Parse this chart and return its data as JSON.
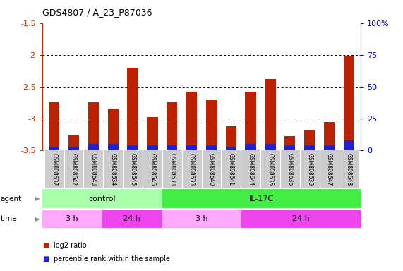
{
  "title": "GDS4807 / A_23_P87036",
  "samples": [
    "GSM808637",
    "GSM808642",
    "GSM808643",
    "GSM808634",
    "GSM808645",
    "GSM808646",
    "GSM808633",
    "GSM808638",
    "GSM808640",
    "GSM808641",
    "GSM808644",
    "GSM808635",
    "GSM808636",
    "GSM808639",
    "GSM808647",
    "GSM808648"
  ],
  "log2_ratio": [
    -2.75,
    -3.25,
    -2.75,
    -2.85,
    -2.2,
    -2.98,
    -2.75,
    -2.58,
    -2.7,
    -3.12,
    -2.58,
    -2.38,
    -3.28,
    -3.18,
    -3.05,
    -2.02
  ],
  "percentile_rank_pct": [
    3,
    3,
    5,
    5,
    4,
    4,
    4,
    4,
    4,
    3,
    5,
    5,
    4,
    4,
    4,
    8
  ],
  "ylim_left": [
    -3.5,
    -1.5
  ],
  "ylim_right": [
    0,
    100
  ],
  "yticks_left": [
    -3.5,
    -3.0,
    -2.5,
    -2.0,
    -1.5
  ],
  "yticks_right": [
    0,
    25,
    50,
    75,
    100
  ],
  "ytick_labels_left": [
    "-3.5",
    "-3",
    "-2.5",
    "-2",
    "-1.5"
  ],
  "ytick_labels_right": [
    "0",
    "25",
    "50",
    "75",
    "100%"
  ],
  "grid_lines": [
    -3.0,
    -2.5,
    -2.0
  ],
  "bar_color_red": "#bb2200",
  "bar_color_blue": "#2222cc",
  "agent_groups": [
    {
      "label": "control",
      "start": 0,
      "end": 6,
      "color": "#aaffaa"
    },
    {
      "label": "IL-17C",
      "start": 6,
      "end": 16,
      "color": "#44ee44"
    }
  ],
  "time_groups": [
    {
      "label": "3 h",
      "start": 0,
      "end": 3,
      "color": "#ffaaff"
    },
    {
      "label": "24 h",
      "start": 3,
      "end": 6,
      "color": "#ee44ee"
    },
    {
      "label": "3 h",
      "start": 6,
      "end": 10,
      "color": "#ffaaff"
    },
    {
      "label": "24 h",
      "start": 10,
      "end": 16,
      "color": "#ee44ee"
    }
  ],
  "legend_red_label": "log2 ratio",
  "legend_blue_label": "percentile rank within the sample",
  "bg_color": "#ffffff",
  "bar_width": 0.55,
  "axis_color_left": "#cc2200",
  "axis_color_right": "#0000cc",
  "sample_box_color": "#cccccc",
  "n_samples": 16
}
